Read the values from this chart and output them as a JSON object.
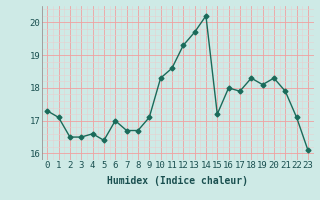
{
  "x": [
    0,
    1,
    2,
    3,
    4,
    5,
    6,
    7,
    8,
    9,
    10,
    11,
    12,
    13,
    14,
    15,
    16,
    17,
    18,
    19,
    20,
    21,
    22,
    23
  ],
  "y": [
    17.3,
    17.1,
    16.5,
    16.5,
    16.6,
    16.4,
    17.0,
    16.7,
    16.7,
    17.1,
    18.3,
    18.6,
    19.3,
    19.7,
    20.2,
    17.2,
    18.0,
    17.9,
    18.3,
    18.1,
    18.3,
    17.9,
    17.1,
    16.1
  ],
  "line_color": "#1a6b5a",
  "marker": "D",
  "marker_size": 2.5,
  "bg_color": "#ceeae6",
  "major_grid_color": "#f0a0a0",
  "minor_grid_color": "#e8d0d0",
  "xlabel": "Humidex (Indice chaleur)",
  "ylim": [
    15.8,
    20.5
  ],
  "xlim": [
    -0.5,
    23.5
  ],
  "yticks": [
    16,
    17,
    18,
    19,
    20
  ],
  "xticks": [
    0,
    1,
    2,
    3,
    4,
    5,
    6,
    7,
    8,
    9,
    10,
    11,
    12,
    13,
    14,
    15,
    16,
    17,
    18,
    19,
    20,
    21,
    22,
    23
  ],
  "xlabel_fontsize": 7,
  "tick_fontsize": 6.5,
  "linewidth": 1.0
}
